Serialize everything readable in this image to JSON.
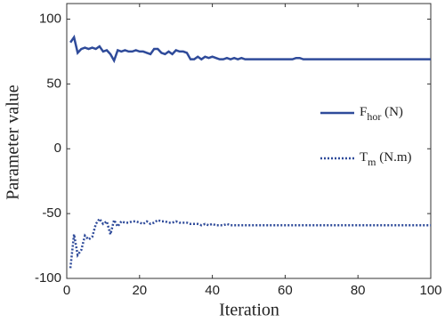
{
  "chart_data": {
    "type": "line",
    "x_label": "Iteration",
    "y_label": "Parameter value",
    "x": [
      1,
      2,
      3,
      4,
      5,
      6,
      7,
      8,
      9,
      10,
      11,
      12,
      13,
      14,
      15,
      16,
      17,
      18,
      19,
      20,
      21,
      22,
      23,
      24,
      25,
      26,
      27,
      28,
      29,
      30,
      31,
      32,
      33,
      34,
      35,
      36,
      37,
      38,
      39,
      40,
      41,
      42,
      43,
      44,
      45,
      46,
      47,
      48,
      49,
      50,
      51,
      52,
      53,
      54,
      55,
      56,
      57,
      58,
      59,
      60,
      61,
      62,
      63,
      64,
      65,
      66,
      67,
      68,
      69,
      70,
      71,
      72,
      73,
      74,
      75,
      76,
      77,
      78,
      79,
      80,
      81,
      82,
      83,
      84,
      85,
      86,
      87,
      88,
      89,
      90,
      91,
      92,
      93,
      94,
      95,
      96,
      97,
      98,
      99,
      100
    ],
    "series": [
      {
        "name": [
          "F",
          "hor",
          " (N)"
        ],
        "color": "#2f4b9a",
        "dash": "solid",
        "values": [
          82,
          86,
          74,
          77,
          78,
          77,
          78,
          77,
          79,
          75,
          76,
          73,
          68,
          76,
          75,
          76,
          75,
          75,
          76,
          75,
          75,
          74,
          73,
          77,
          77,
          74,
          73,
          75,
          73,
          76,
          75,
          75,
          74,
          69,
          69,
          71,
          69,
          71,
          70,
          71,
          70,
          69,
          69,
          70,
          69,
          70,
          69,
          70,
          69,
          69,
          69,
          69,
          69,
          69,
          69,
          69,
          69,
          69,
          69,
          69,
          69,
          69,
          70,
          70,
          69,
          69,
          69,
          69,
          69,
          69,
          69,
          69,
          69,
          69,
          69,
          69,
          69,
          69,
          69,
          69,
          69,
          69,
          69,
          69,
          69,
          69,
          69,
          69,
          69,
          69,
          69,
          69,
          69,
          69,
          69,
          69,
          69,
          69,
          69,
          69
        ]
      },
      {
        "name": [
          "T",
          "m",
          " (N.m)"
        ],
        "color": "#2f4b9a",
        "dash": "dotted",
        "values": [
          -92,
          -66,
          -82,
          -78,
          -67,
          -70,
          -68,
          -58,
          -54,
          -58,
          -56,
          -66,
          -55,
          -60,
          -56,
          -57,
          -57,
          -56,
          -56,
          -57,
          -58,
          -56,
          -58,
          -57,
          -55,
          -56,
          -56,
          -57,
          -57,
          -56,
          -57,
          -57,
          -57,
          -58,
          -58,
          -58,
          -59,
          -58,
          -59,
          -58,
          -59,
          -59,
          -59,
          -58,
          -59,
          -59,
          -59,
          -59,
          -59,
          -59,
          -59,
          -59,
          -59,
          -59,
          -59,
          -59,
          -59,
          -59,
          -59,
          -59,
          -59,
          -59,
          -59,
          -59,
          -59,
          -59,
          -59,
          -59,
          -59,
          -59,
          -59,
          -59,
          -59,
          -59,
          -59,
          -59,
          -59,
          -59,
          -59,
          -59,
          -59,
          -59,
          -59,
          -59,
          -59,
          -59,
          -59,
          -59,
          -59,
          -59,
          -59,
          -59,
          -59,
          -59,
          -59,
          -59,
          -59,
          -59,
          -59,
          -59
        ]
      }
    ],
    "xlim": [
      0,
      100
    ],
    "xticks": [
      0,
      20,
      40,
      60,
      80,
      100
    ],
    "ylim": [
      -100,
      112
    ],
    "yticks": [
      -100,
      -50,
      0,
      50,
      100
    ]
  }
}
